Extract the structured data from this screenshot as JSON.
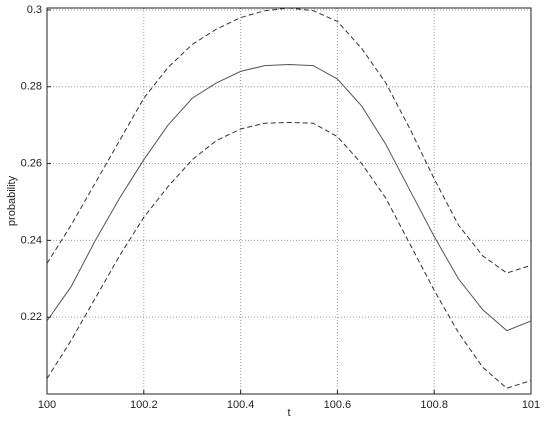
{
  "chart_data": {
    "type": "line",
    "xlabel": "t",
    "ylabel": "probability",
    "x": [
      100,
      100.05,
      100.1,
      100.15,
      100.2,
      100.25,
      100.3,
      100.35,
      100.4,
      100.45,
      100.5,
      100.55,
      100.6,
      100.65,
      100.7,
      100.75,
      100.8,
      100.85,
      100.9,
      100.95,
      101
    ],
    "series": [
      {
        "color": "#555555",
        "dash": false,
        "values": [
          0.219,
          0.228,
          0.24,
          0.251,
          0.261,
          0.27,
          0.277,
          0.281,
          0.284,
          0.2855,
          0.2858,
          0.2855,
          0.282,
          0.275,
          0.265,
          0.253,
          0.241,
          0.23,
          0.222,
          0.2165,
          0.219
        ]
      },
      {
        "color": "#333333",
        "dash": true,
        "values": [
          0.234,
          0.244,
          0.255,
          0.266,
          0.277,
          0.285,
          0.291,
          0.295,
          0.298,
          0.2998,
          0.3005,
          0.2998,
          0.297,
          0.29,
          0.281,
          0.269,
          0.256,
          0.244,
          0.236,
          0.2315,
          0.2335
        ]
      },
      {
        "color": "#333333",
        "dash": true,
        "values": [
          0.204,
          0.214,
          0.225,
          0.236,
          0.246,
          0.254,
          0.261,
          0.266,
          0.269,
          0.2705,
          0.2707,
          0.2705,
          0.267,
          0.26,
          0.251,
          0.239,
          0.227,
          0.216,
          0.207,
          0.2015,
          0.2035
        ]
      }
    ],
    "xlim": [
      100,
      101
    ],
    "xticks": [
      100,
      100.2,
      100.4,
      100.6,
      100.8,
      101
    ],
    "ylim": [
      0.2,
      0.3005
    ],
    "yticks": [
      0.22,
      0.24,
      0.26,
      0.28,
      0.3
    ],
    "grid": true
  }
}
